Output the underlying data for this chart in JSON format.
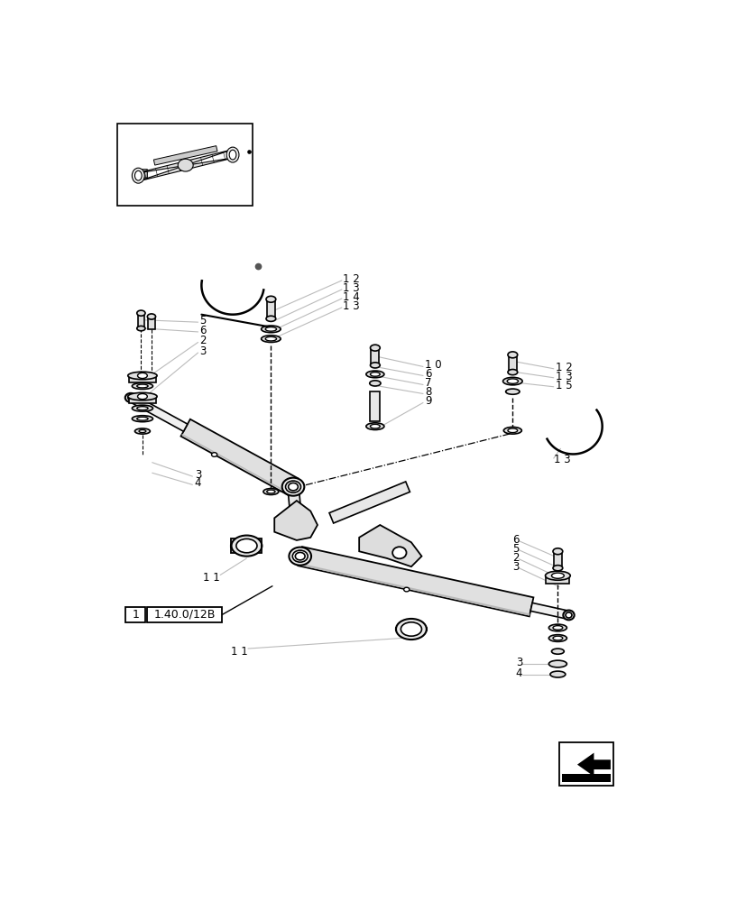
{
  "bg_color": "#ffffff",
  "line_color": "#000000",
  "gray_color": "#999999",
  "light_gray": "#bbbbbb",
  "ref_label": "1.40.0/12B",
  "ref_num": "1",
  "figsize": [
    8.28,
    10.0
  ],
  "dpi": 100
}
